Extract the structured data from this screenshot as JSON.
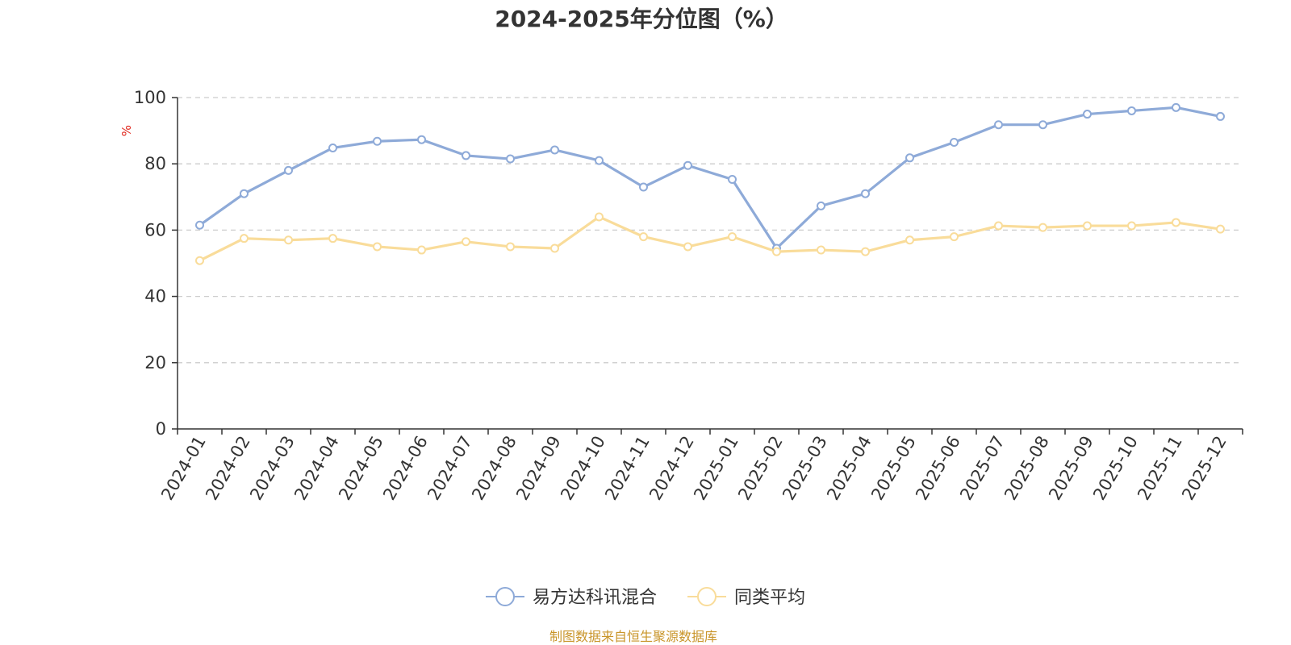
{
  "chart_data": {
    "type": "line",
    "title": "2024-2025年分位图（%）",
    "ylabel": "%",
    "ylim": [
      0,
      100
    ],
    "yticks": [
      "0",
      "20",
      "40",
      "60",
      "80",
      "100"
    ],
    "grid": true,
    "legend_position": "bottom",
    "categories": [
      "2024-01",
      "2024-02",
      "2024-03",
      "2024-04",
      "2024-05",
      "2024-06",
      "2024-07",
      "2024-08",
      "2024-09",
      "2024-10",
      "2024-11",
      "2024-12",
      "2025-01",
      "2025-02",
      "2025-03",
      "2025-04",
      "2025-05",
      "2025-06",
      "2025-07",
      "2025-08",
      "2025-09",
      "2025-10",
      "2025-11",
      "2025-12"
    ],
    "series": [
      {
        "name": "易方达科讯混合",
        "color": "#8eaad8",
        "values": [
          61.5,
          71,
          78,
          84.8,
          86.8,
          87.3,
          82.5,
          81.5,
          84.2,
          81,
          73,
          79.5,
          75.3,
          54.5,
          67.3,
          71,
          81.8,
          86.5,
          91.8,
          91.8,
          95,
          96,
          97,
          94.3
        ]
      },
      {
        "name": "同类平均",
        "color": "#f9dc9a",
        "values": [
          50.8,
          57.5,
          57,
          57.5,
          55,
          54,
          56.5,
          55,
          54.5,
          64,
          58,
          55,
          58,
          53.5,
          54,
          53.5,
          57,
          58,
          61.3,
          60.8,
          61.3,
          61.3,
          62.3,
          60.3
        ]
      }
    ],
    "source": "制图数据来自恒生聚源数据库",
    "source_color": "#c9952a",
    "ylabel_color": "#e0251b",
    "axis_color": "#333333",
    "grid_color": "#cccccc"
  }
}
